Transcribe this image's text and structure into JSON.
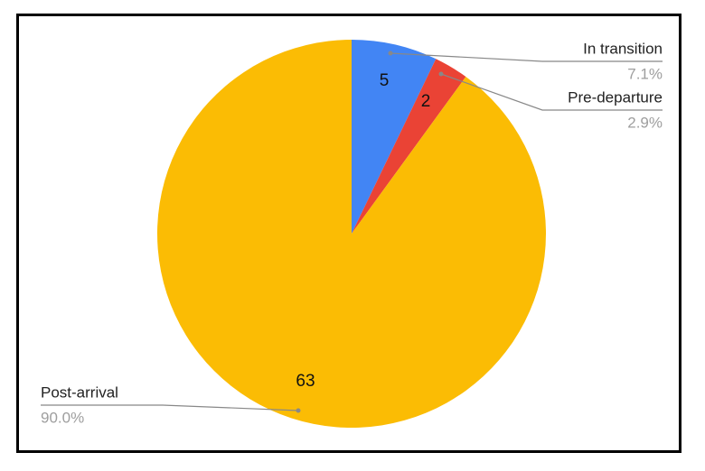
{
  "chart_data": {
    "type": "pie",
    "categories": [
      "In transition",
      "Pre-departure",
      "Post-arrival"
    ],
    "values": [
      5,
      2,
      63
    ],
    "percent_labels": [
      "7.1%",
      "2.9%",
      "90.0%"
    ],
    "colors": [
      "#4285f4",
      "#ea4335",
      "#fbbc04"
    ]
  }
}
